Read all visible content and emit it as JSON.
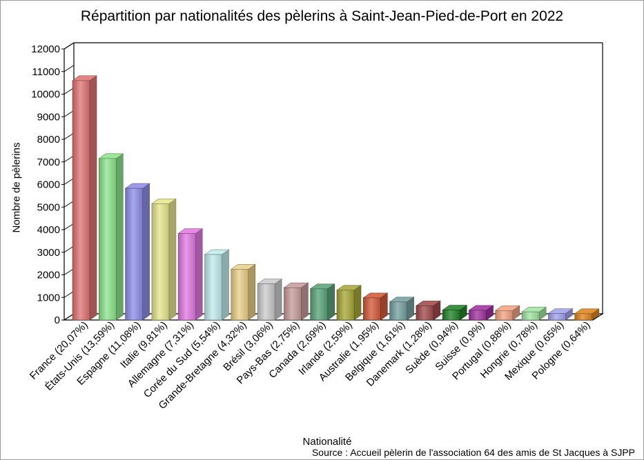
{
  "chart_data": {
    "type": "bar",
    "title": "Répartition par nationalités des pèlerins à Saint-Jean-Pied-de-Port en 2022",
    "xlabel": "Nationalité",
    "ylabel": "Nombre de pèlerins",
    "source": "Source : Accueil pèlerin de l'association 64 des amis de St Jacques à SJPP",
    "ylim": [
      0,
      12000
    ],
    "y_ticks": [
      "0",
      "1000",
      "2000",
      "3000",
      "4000",
      "5000",
      "6000",
      "7000",
      "8000",
      "9000",
      "10000",
      "11000",
      "12000"
    ],
    "categories": [
      "France (20,07%)",
      "États-Unis (13,59%)",
      "Espagne (11,08%)",
      "Italie (9,81%)",
      "Allemagne (7,31%)",
      "Corée du Sud (5,54%)",
      "Grande-Bretagne (4,32%)",
      "Brésil (3,06%)",
      "Pays-Bas (2,75%)",
      "Canada (2,69%)",
      "Irlande (2,59%)",
      "Australie (1,95%)",
      "Belgique (1,61%)",
      "Danemark (1,28%)",
      "Suède (0,94%)",
      "Suisse (0,9%)",
      "Portugal (0,88%)",
      "Hongrie (0,78%)",
      "Mexique (0,65%)",
      "Pologne (0,64%)"
    ],
    "values": [
      10600,
      7150,
      5830,
      5150,
      3830,
      2900,
      2250,
      1600,
      1430,
      1380,
      1320,
      980,
      800,
      630,
      440,
      430,
      420,
      360,
      290,
      280
    ],
    "colors": [
      "#e07474",
      "#8ee48e",
      "#8e8ee8",
      "#e6e68e",
      "#e27ae2",
      "#c2ecec",
      "#ecd08a",
      "#cccccc",
      "#c89c9c",
      "#5aa47a",
      "#a8a83a",
      "#d25a3a",
      "#74a0a0",
      "#a04a4a",
      "#22822a",
      "#a232a2",
      "#f2a482",
      "#a2e4a2",
      "#a2a2ec",
      "#e0861e"
    ],
    "grid": false,
    "legend": "none",
    "style": "3d-bars"
  }
}
